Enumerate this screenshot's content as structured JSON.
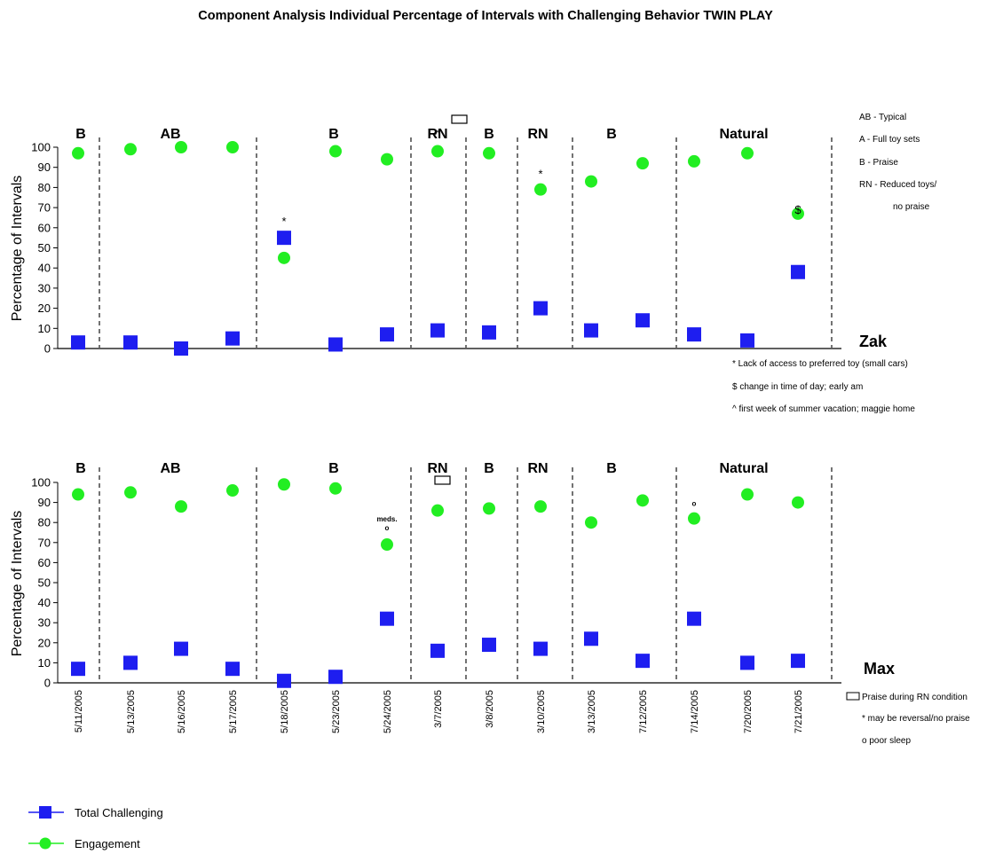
{
  "title": "Component Analysis Individual Percentage of Intervals with Challenging Behavior TWIN PLAY",
  "colors": {
    "challenging": "#1e1ef0",
    "engagement": "#22ee22"
  },
  "legend": [
    {
      "label": "Total Challenging",
      "shape": "square",
      "color": "#1e1ef0"
    },
    {
      "label": "Engagement",
      "shape": "circle",
      "color": "#22ee22"
    }
  ],
  "key_notes": [
    "AB - Typical",
    "A - Full toy sets",
    "B - Praise",
    "RN - Reduced toys/",
    "no praise"
  ],
  "zak_notes": [
    "* Lack of access to preferred toy (small cars)",
    "$ change in time of day; early am",
    "^ first week of summer vacation; maggie home"
  ],
  "max_notes": [
    "Praise during RN condition",
    "* may be reversal/no praise",
    "o poor sleep"
  ],
  "chart_data": [
    {
      "type": "scatter",
      "subject": "Zak",
      "ylabel": "Percentage of Intervals",
      "ylim": [
        0,
        100
      ],
      "yticks": [
        0,
        10,
        20,
        30,
        40,
        50,
        60,
        70,
        80,
        90,
        100
      ],
      "phases": [
        "B",
        "AB",
        "B",
        "RN",
        "B",
        "RN",
        "B",
        "Natural"
      ],
      "series": [
        {
          "name": "Total Challenging",
          "values": [
            3,
            3,
            0,
            5,
            55,
            2,
            7,
            9,
            8,
            20,
            9,
            14,
            7,
            4,
            38
          ]
        },
        {
          "name": "Engagement",
          "values": [
            97,
            99,
            100,
            100,
            45,
            98,
            94,
            98,
            97,
            79,
            83,
            92,
            93,
            97,
            67
          ]
        }
      ],
      "annotations": [
        {
          "text": "*",
          "point": 4
        },
        {
          "text": "^",
          "point": 7
        },
        {
          "text": "*",
          "point": 9
        },
        {
          "text": "$",
          "point": 14
        }
      ]
    },
    {
      "type": "scatter",
      "subject": "Max",
      "ylabel": "Percentage of Intervals",
      "ylim": [
        0,
        100
      ],
      "yticks": [
        0,
        10,
        20,
        30,
        40,
        50,
        60,
        70,
        80,
        90,
        100
      ],
      "phases": [
        "B",
        "AB",
        "B",
        "RN",
        "B",
        "RN",
        "B",
        "Natural"
      ],
      "categories": [
        "5/11/2005",
        "5/13/2005",
        "5/16/2005",
        "5/17/2005",
        "5/18/2005",
        "5/23/2005",
        "5/24/2005",
        "3/7/2005",
        "3/8/2005",
        "3/10/2005",
        "3/13/2005",
        "7/12/2005",
        "7/14/2005",
        "7/20/2005",
        "7/21/2005"
      ],
      "series": [
        {
          "name": "Total Challenging",
          "values": [
            7,
            10,
            17,
            7,
            1,
            3,
            32,
            16,
            19,
            17,
            22,
            11,
            32,
            10,
            11
          ]
        },
        {
          "name": "Engagement",
          "values": [
            94,
            95,
            88,
            96,
            99,
            97,
            69,
            86,
            87,
            88,
            80,
            91,
            82,
            94,
            90
          ]
        }
      ],
      "annotations": [
        {
          "text": "meds.",
          "point": 6
        },
        {
          "text": "o",
          "point": 6
        },
        {
          "text": "o",
          "point": 12
        }
      ]
    }
  ]
}
